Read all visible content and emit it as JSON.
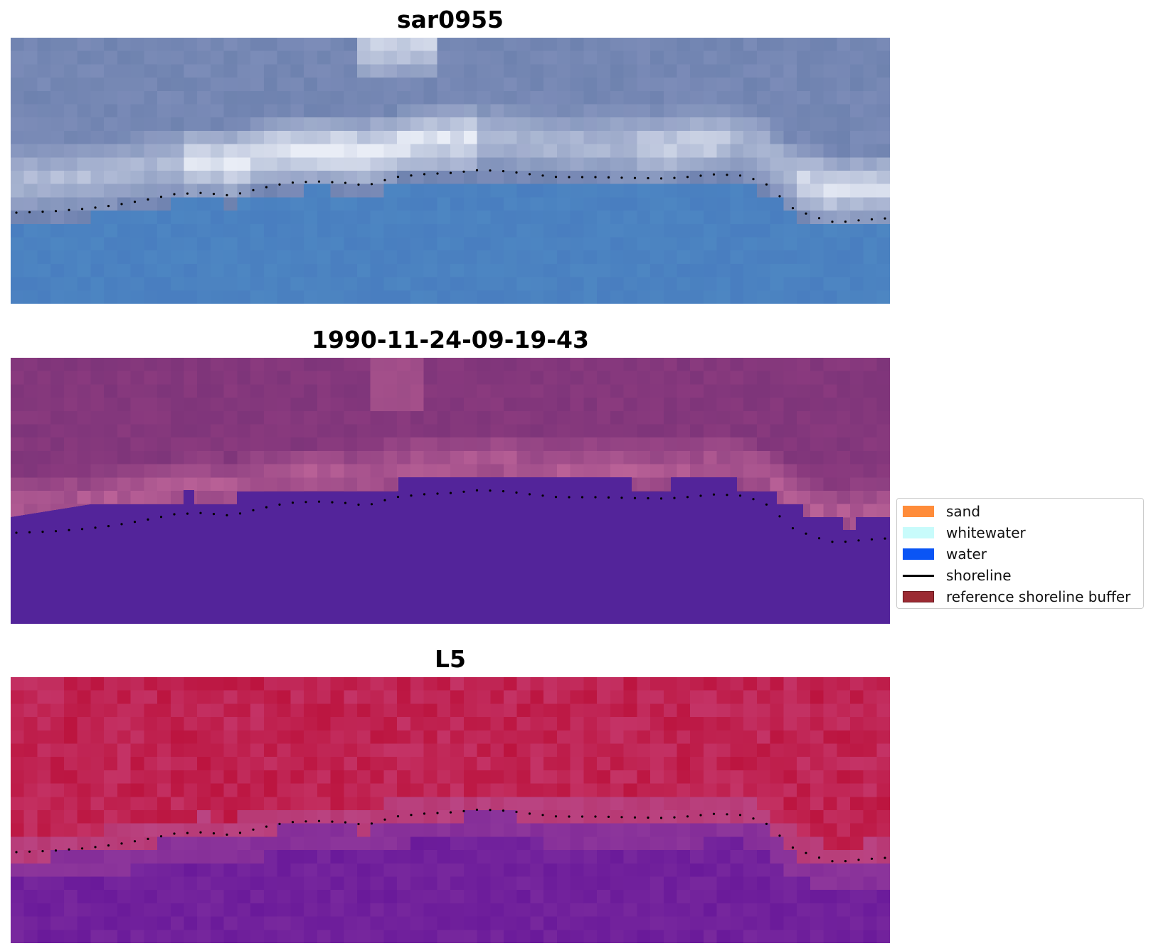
{
  "panels": [
    {
      "key": "rgb",
      "title": "sar0955"
    },
    {
      "key": "class",
      "title": "1990-11-24-09-19-43"
    },
    {
      "key": "index",
      "title": "L5"
    }
  ],
  "legend": {
    "items": [
      {
        "label": "sand",
        "color": "#ff8c3a",
        "kind": "patch"
      },
      {
        "label": "whitewater",
        "color": "#c8fbfb",
        "kind": "patch"
      },
      {
        "label": "water",
        "color": "#0a55f5",
        "kind": "patch"
      },
      {
        "label": "shoreline",
        "color": "#000000",
        "kind": "line"
      },
      {
        "label": "reference shoreline buffer",
        "color": "#9b2a32",
        "kind": "patch",
        "edge": "#6e1a20"
      }
    ]
  },
  "colors": {
    "rgb_water": "#4d86c2",
    "rgb_cloud": "#e9edf6",
    "classified_background": "#8a3a7e",
    "classified_water": "#53249a",
    "index_land": "#c43366",
    "index_water": "#6a1a9a"
  }
}
